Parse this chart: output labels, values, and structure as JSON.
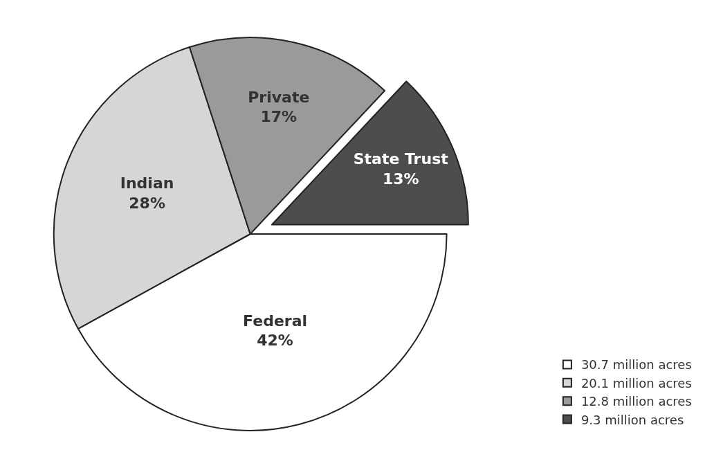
{
  "chart_data": {
    "type": "pie",
    "categories": [
      "30.7 million acres",
      "20.1 million acres",
      "12.8 million acres",
      "9.3 million acres"
    ],
    "values": [
      42,
      28,
      17,
      13
    ],
    "value_labels": [
      "Federal\n42%",
      "Indian\n28%",
      "Private\n17%",
      "State Trust\n13%"
    ],
    "colors": [
      "#ffffff",
      "#d6d6d6",
      "#9a9a9a",
      "#4d4d4d"
    ],
    "legend": "bottom right"
  }
}
